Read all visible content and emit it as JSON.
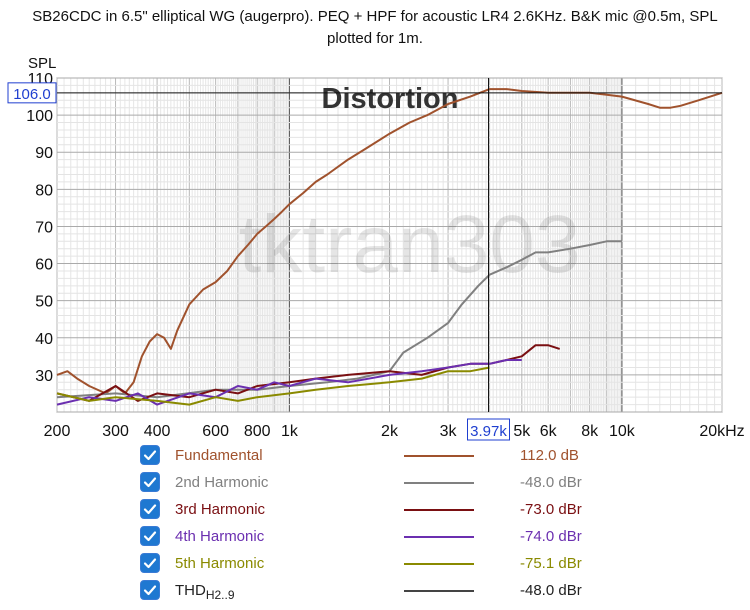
{
  "title_line1": "SB26CDC in 6.5\" elliptical WG (augerpro). PEQ + HPF for acoustic LR4 2.6KHz. B&K mic @0.5m, SPL",
  "title_line2": "plotted for 1m.",
  "chart_data": {
    "type": "line",
    "title": "Distortion",
    "watermark": "tktran303",
    "ylabel": "SPL",
    "xlabel": "",
    "xscale": "log",
    "xlim": [
      200,
      20000
    ],
    "ylim": [
      20,
      110
    ],
    "grid": true,
    "x_tick_labels": [
      "200",
      "300",
      "400",
      "600",
      "800",
      "1k",
      "2k",
      "3k",
      "5k",
      "6k",
      "8k",
      "10k",
      "20kHz"
    ],
    "y_tick_labels": [
      "30",
      "40",
      "50",
      "60",
      "70",
      "80",
      "90",
      "100",
      "110"
    ],
    "cursor": {
      "x_label": "3.97k",
      "y_label": "106.0",
      "x": 3970,
      "y": 106.0
    },
    "series": [
      {
        "name": "Fundamental",
        "color": "#a0522d",
        "points": [
          [
            200,
            30
          ],
          [
            215,
            31
          ],
          [
            230,
            29
          ],
          [
            250,
            27
          ],
          [
            280,
            25
          ],
          [
            300,
            27
          ],
          [
            320,
            25
          ],
          [
            340,
            28
          ],
          [
            360,
            35
          ],
          [
            380,
            39
          ],
          [
            400,
            41
          ],
          [
            420,
            40
          ],
          [
            440,
            37
          ],
          [
            460,
            42
          ],
          [
            500,
            49
          ],
          [
            550,
            53
          ],
          [
            600,
            55
          ],
          [
            650,
            58
          ],
          [
            700,
            62
          ],
          [
            750,
            65
          ],
          [
            800,
            68
          ],
          [
            850,
            70
          ],
          [
            900,
            72
          ],
          [
            950,
            74
          ],
          [
            1000,
            76
          ],
          [
            1100,
            79
          ],
          [
            1200,
            82
          ],
          [
            1300,
            84
          ],
          [
            1500,
            88
          ],
          [
            1700,
            91
          ],
          [
            2000,
            95
          ],
          [
            2300,
            98
          ],
          [
            2600,
            100
          ],
          [
            3000,
            103
          ],
          [
            3500,
            105
          ],
          [
            4000,
            107
          ],
          [
            4500,
            107
          ],
          [
            5000,
            106.5
          ],
          [
            6000,
            106
          ],
          [
            7000,
            106
          ],
          [
            8000,
            106
          ],
          [
            9000,
            105.5
          ],
          [
            10000,
            105
          ],
          [
            12000,
            103
          ],
          [
            13000,
            102
          ],
          [
            14000,
            102
          ],
          [
            15000,
            102.5
          ],
          [
            17000,
            104
          ],
          [
            20000,
            106
          ]
        ]
      },
      {
        "name": "2nd Harmonic",
        "color": "#808080",
        "points": [
          [
            200,
            24
          ],
          [
            300,
            25
          ],
          [
            400,
            24
          ],
          [
            600,
            26
          ],
          [
            800,
            26
          ],
          [
            1000,
            27
          ],
          [
            1300,
            28
          ],
          [
            1600,
            29
          ],
          [
            2000,
            31
          ],
          [
            2200,
            36
          ],
          [
            2600,
            40
          ],
          [
            3000,
            44
          ],
          [
            3300,
            49
          ],
          [
            3700,
            54
          ],
          [
            4000,
            57
          ],
          [
            4500,
            59
          ],
          [
            5000,
            61
          ],
          [
            5500,
            63
          ],
          [
            6000,
            63
          ],
          [
            7000,
            64
          ],
          [
            8000,
            65
          ],
          [
            9000,
            66
          ],
          [
            10000,
            66
          ]
        ]
      },
      {
        "name": "3rd Harmonic",
        "color": "#7a0f12",
        "points": [
          [
            200,
            25
          ],
          [
            250,
            23
          ],
          [
            300,
            27
          ],
          [
            350,
            23
          ],
          [
            400,
            25
          ],
          [
            500,
            24
          ],
          [
            600,
            26
          ],
          [
            700,
            25
          ],
          [
            800,
            27
          ],
          [
            1000,
            28
          ],
          [
            1200,
            29
          ],
          [
            1500,
            30
          ],
          [
            2000,
            31
          ],
          [
            2500,
            30
          ],
          [
            3000,
            32
          ],
          [
            3500,
            33
          ],
          [
            4000,
            33
          ],
          [
            4500,
            34
          ],
          [
            5000,
            35
          ],
          [
            5500,
            38
          ],
          [
            6000,
            38
          ],
          [
            6500,
            37
          ]
        ]
      },
      {
        "name": "4th Harmonic",
        "color": "#6b2fb0",
        "points": [
          [
            200,
            22
          ],
          [
            250,
            24
          ],
          [
            300,
            23
          ],
          [
            350,
            25
          ],
          [
            400,
            22
          ],
          [
            500,
            25
          ],
          [
            600,
            24
          ],
          [
            700,
            27
          ],
          [
            800,
            26
          ],
          [
            900,
            28
          ],
          [
            1000,
            27
          ],
          [
            1200,
            29
          ],
          [
            1500,
            28
          ],
          [
            2000,
            30
          ],
          [
            2500,
            31
          ],
          [
            3000,
            32
          ],
          [
            3500,
            33
          ],
          [
            4000,
            33
          ],
          [
            4500,
            34
          ],
          [
            5000,
            34
          ]
        ]
      },
      {
        "name": "5th Harmonic",
        "color": "#8a8a00",
        "points": [
          [
            200,
            25
          ],
          [
            250,
            23
          ],
          [
            300,
            24
          ],
          [
            400,
            23
          ],
          [
            500,
            22
          ],
          [
            600,
            24
          ],
          [
            700,
            23
          ],
          [
            800,
            24
          ],
          [
            1000,
            25
          ],
          [
            1200,
            26
          ],
          [
            1500,
            27
          ],
          [
            2000,
            28
          ],
          [
            2500,
            29
          ],
          [
            3000,
            31
          ],
          [
            3500,
            31
          ],
          [
            4000,
            32
          ]
        ]
      }
    ]
  },
  "legend": [
    {
      "label": "Fundamental",
      "value": "112.0 dB",
      "color": "#a0522d",
      "checked": true
    },
    {
      "label": "2nd Harmonic",
      "value": "-48.0 dBr",
      "color": "#808080",
      "checked": true
    },
    {
      "label": "3rd Harmonic",
      "value": "-73.0 dBr",
      "color": "#7a0f12",
      "checked": true
    },
    {
      "label": "4th Harmonic",
      "value": "-74.0 dBr",
      "color": "#6b2fb0",
      "checked": true
    },
    {
      "label": "5th Harmonic",
      "value": "-75.1 dBr",
      "color": "#8a8a00",
      "checked": true
    },
    {
      "label": "THD",
      "label_sub": "H2..9",
      "value": "-48.0 dBr",
      "color": "#444444",
      "checked": true
    }
  ]
}
